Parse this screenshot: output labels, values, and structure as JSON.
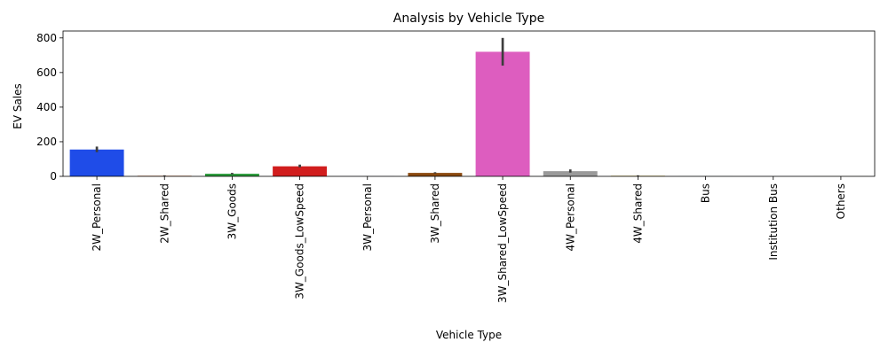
{
  "chart_data": {
    "type": "bar",
    "title": "Analysis by Vehicle Type",
    "xlabel": "Vehicle Type",
    "ylabel": "EV Sales",
    "ylim": [
      0,
      840
    ],
    "yticks": [
      0,
      200,
      400,
      600,
      800
    ],
    "grid": false,
    "categories": [
      "2W_Personal",
      "2W_Shared",
      "3W_Goods",
      "3W_Goods_LowSpeed",
      "3W_Personal",
      "3W_Shared",
      "3W_Shared_LowSpeed",
      "4W_Personal",
      "4W_Shared",
      "Bus",
      "Institution Bus",
      "Others"
    ],
    "values": [
      155,
      3,
      15,
      58,
      0.5,
      20,
      720,
      30,
      3,
      0.3,
      0.2,
      0.2
    ],
    "error_low": [
      140,
      1,
      11,
      52,
      0,
      17,
      640,
      22,
      1,
      0,
      0,
      0
    ],
    "error_high": [
      172,
      6,
      20,
      68,
      1,
      24,
      800,
      40,
      6,
      1,
      0.5,
      0.5
    ],
    "colors": [
      "#1f4ce8",
      "#c6530a",
      "#2a9a3a",
      "#d11d1d",
      "#7a5ad6",
      "#8b4a10",
      "#dd5dbf",
      "#9a9a9a",
      "#c6a60a",
      "#22a5c6",
      "#1f4ce8",
      "#c6530a"
    ]
  }
}
